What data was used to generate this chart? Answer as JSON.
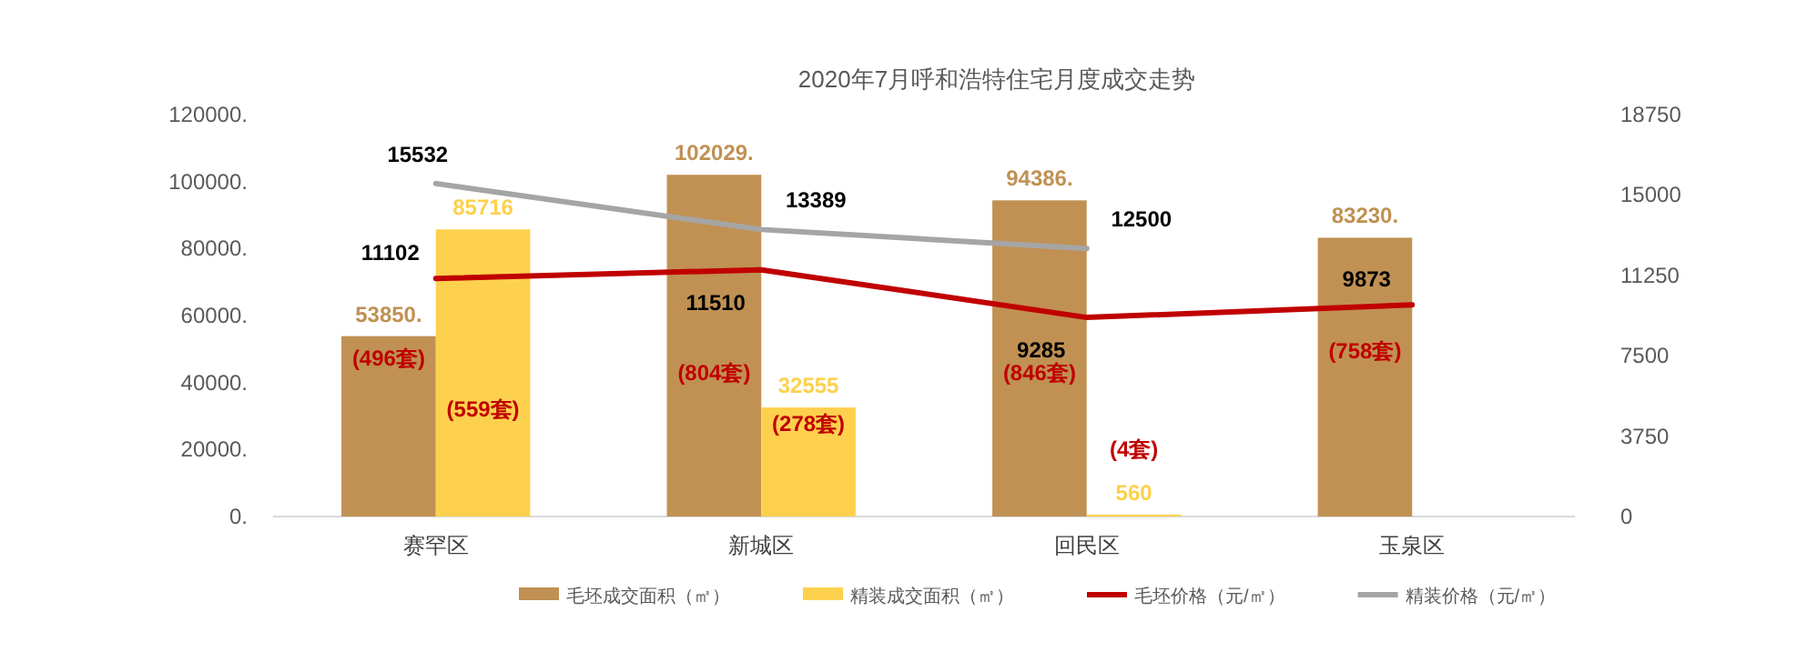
{
  "chart_data": {
    "type": "bar",
    "title": "2020年7月呼和浩特住宅月度成交走势",
    "categories": [
      "赛罕区",
      "新城区",
      "回民区",
      "玉泉区"
    ],
    "series": [
      {
        "name": "毛坯成交面积（㎡）",
        "color": "#c09153",
        "values": [
          53850,
          102029,
          94386,
          83230
        ],
        "value_labels": [
          "53850.",
          "102029.",
          "94386.",
          "83230."
        ]
      },
      {
        "name": "精装成交面积（㎡）",
        "color": "#fdd14d",
        "values": [
          85716,
          32555,
          560,
          null
        ],
        "value_labels": [
          "85716",
          "32555",
          "560",
          null
        ]
      },
      {
        "name": "毛坯价格（元/㎡）",
        "type": "line",
        "axis": "y2",
        "color": "#c00000",
        "values": [
          11102,
          11510,
          9285,
          9873
        ],
        "value_labels": [
          "11102",
          "11510",
          "9285",
          "9873"
        ]
      },
      {
        "name": "精装价格（元/㎡）",
        "type": "line",
        "axis": "y2",
        "color": "#a5a5a5",
        "values": [
          15532,
          13389,
          12500,
          null
        ],
        "value_labels": [
          "15532",
          "13389",
          "12500",
          null
        ]
      }
    ],
    "ylim": [
      0,
      120000
    ],
    "yticks": [
      {
        "value": 0,
        "label": "0."
      },
      {
        "value": 20000,
        "label": "20000."
      },
      {
        "value": 40000,
        "label": "40000."
      },
      {
        "value": 60000,
        "label": "60000."
      },
      {
        "value": 80000,
        "label": "80000."
      },
      {
        "value": 100000,
        "label": "100000."
      },
      {
        "value": 120000,
        "label": "120000."
      }
    ],
    "y2lim": [
      0,
      18750
    ],
    "y2ticks": [
      0,
      3750,
      7500,
      11250,
      15000,
      18750
    ],
    "annotations": [
      {
        "text": "(496套)",
        "x": "赛罕区",
        "y": 47200
      },
      {
        "text": "(559套)",
        "x": "赛罕区",
        "y": 32000
      },
      {
        "text": "(804套)",
        "x": "新城区",
        "y": 43000
      },
      {
        "text": "(278套)",
        "x": "新城区",
        "y": 27700
      },
      {
        "text": "(846套)",
        "x": "回民区",
        "y": 43000
      },
      {
        "text": "(4套)",
        "x": "回民区",
        "y": 20000
      },
      {
        "text": "(758套)",
        "x": "玉泉区",
        "y": 49400
      }
    ],
    "grid": false,
    "legend": "bottom"
  }
}
